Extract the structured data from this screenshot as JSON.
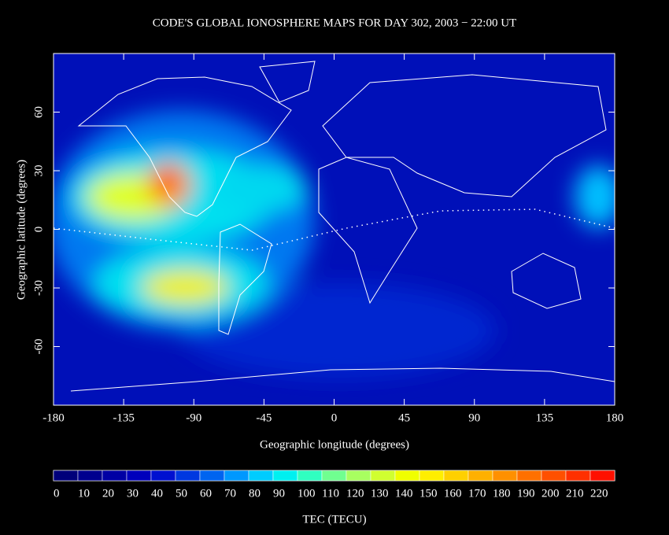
{
  "title": "CODE'S GLOBAL IONOSPHERE MAPS FOR DAY 302, 2003 − 22:00 UT",
  "map": {
    "xlabel": "Geographic longitude (degrees)",
    "ylabel": "Geographic latitude (degrees)",
    "xlim": [
      -180,
      180
    ],
    "ylim": [
      -90,
      90
    ],
    "xticks": [
      -180,
      -135,
      -90,
      -45,
      0,
      45,
      90,
      135,
      180
    ],
    "yticks": [
      -60,
      -30,
      0,
      30,
      60
    ]
  },
  "colorbar": {
    "title": "TEC (TECU)",
    "ticks": [
      0,
      10,
      20,
      30,
      40,
      50,
      60,
      70,
      80,
      90,
      100,
      110,
      120,
      130,
      140,
      150,
      160,
      170,
      180,
      190,
      200,
      210,
      220
    ],
    "colors": [
      "#00007a",
      "#00008e",
      "#0000a4",
      "#0000bc",
      "#0010d0",
      "#0038e0",
      "#0064f0",
      "#0098ff",
      "#00ccff",
      "#00f0f0",
      "#30ffc0",
      "#70ff90",
      "#a8ff60",
      "#d0ff30",
      "#f0ff00",
      "#ffee00",
      "#ffd000",
      "#ffb000",
      "#ff9000",
      "#ff7000",
      "#ff5000",
      "#ff3000",
      "#ff1000"
    ]
  }
}
